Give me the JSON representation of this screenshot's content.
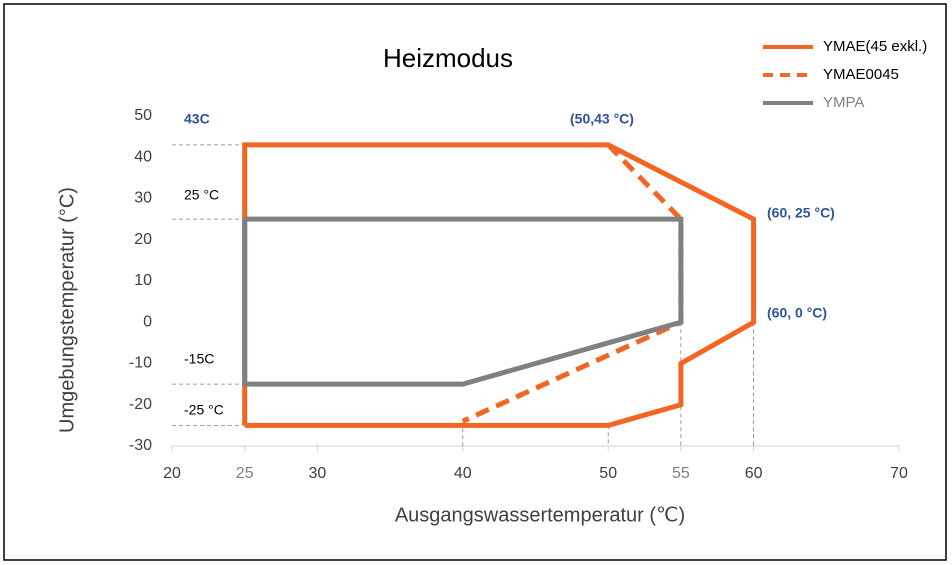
{
  "chart_data": {
    "type": "line",
    "title": "Heizmodus",
    "x_label": "Ausgangswassertemperatur (℃)",
    "y_label": "Umgebungstemperatur (°C)",
    "xlim": [
      20,
      70
    ],
    "xticks": [
      20,
      25,
      30,
      40,
      50,
      55,
      60,
      70
    ],
    "ylim": [
      -30,
      50
    ],
    "yticks": [
      -30,
      -20,
      -10,
      0,
      10,
      20,
      30,
      40,
      50
    ],
    "legend": "top-right",
    "series": [
      {
        "name": "YMAE(45 exkl.)",
        "color": "#f26522",
        "style": "solid",
        "x": [
          25,
          25,
          50,
          60,
          60,
          55,
          55,
          50,
          25
        ],
        "values": [
          -25,
          43,
          43,
          25,
          0,
          -10,
          -20,
          -25,
          -25
        ]
      },
      {
        "name": "YMAE0045",
        "color": "#f26522",
        "style": "dashed",
        "x": [
          50,
          55,
          55,
          40
        ],
        "values": [
          43,
          25,
          0,
          -24
        ]
      },
      {
        "name": "YMPA",
        "color": "#808080",
        "style": "solid",
        "x": [
          25,
          55,
          55,
          40,
          25,
          25
        ],
        "values": [
          25,
          25,
          0,
          -15,
          -15,
          25
        ]
      }
    ],
    "annotations": [
      "43C",
      "(50,43 °C)",
      "(60, 25 °C)",
      "(60, 0 °C)",
      "25 °C",
      "-15C",
      "-25 °C"
    ]
  }
}
